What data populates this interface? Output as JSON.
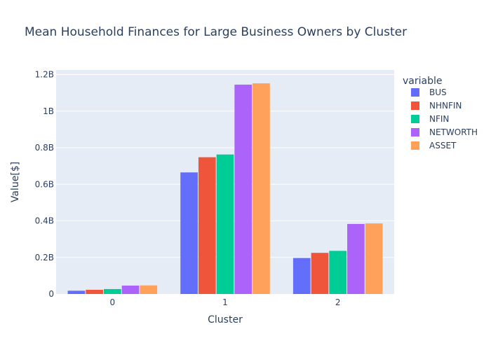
{
  "chart_data": {
    "type": "bar",
    "title": "Mean Household Finances for Large Business Owners by Cluster",
    "xlabel": "Cluster",
    "ylabel": "Value[$]",
    "categories": [
      "0",
      "1",
      "2"
    ],
    "ylim": [
      0,
      1225000000
    ],
    "yticks": [
      {
        "value": 0,
        "label": "0"
      },
      {
        "value": 200000000,
        "label": "0.2B"
      },
      {
        "value": 400000000,
        "label": "0.4B"
      },
      {
        "value": 600000000,
        "label": "0.6B"
      },
      {
        "value": 800000000,
        "label": "0.8B"
      },
      {
        "value": 1000000000,
        "label": "1B"
      },
      {
        "value": 1200000000,
        "label": "1.2B"
      }
    ],
    "legend_title": "variable",
    "legend_position": "top-right",
    "grid": true,
    "series": [
      {
        "name": "BUS",
        "color": "#636efa",
        "values": [
          18000000,
          665000000,
          197000000
        ]
      },
      {
        "name": "NHNFIN",
        "color": "#ef553b",
        "values": [
          23000000,
          748000000,
          225000000
        ]
      },
      {
        "name": "NFIN",
        "color": "#00cc96",
        "values": [
          27000000,
          763000000,
          236000000
        ]
      },
      {
        "name": "NETWORTH",
        "color": "#ab63fa",
        "values": [
          46000000,
          1145000000,
          383000000
        ]
      },
      {
        "name": "ASSET",
        "color": "#ffa15a",
        "values": [
          47000000,
          1152000000,
          386000000
        ]
      }
    ],
    "colors": {
      "plot_bg": "#e5ecf6",
      "grid": "#ffffff",
      "text": "#2a3f5f"
    }
  }
}
